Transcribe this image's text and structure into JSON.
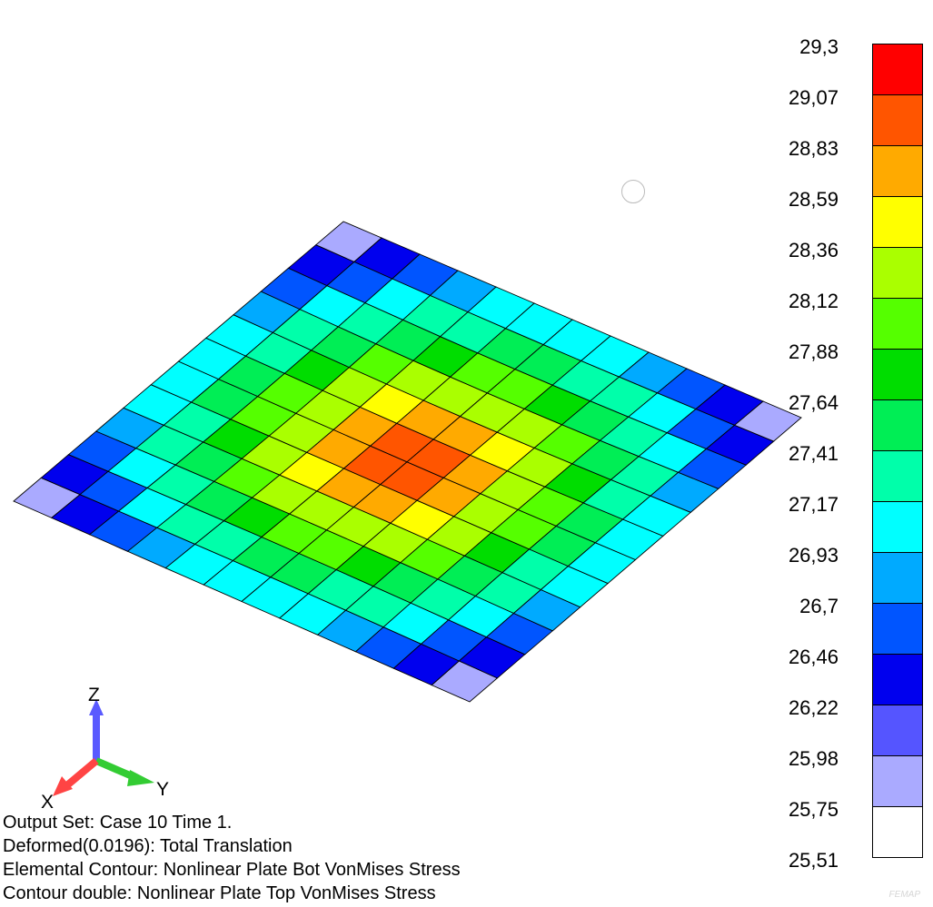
{
  "legend": {
    "colors": [
      "#ff0000",
      "#ff5500",
      "#ffaa00",
      "#ffff00",
      "#aaff00",
      "#55ff00",
      "#00dd00",
      "#00ee55",
      "#00ffaa",
      "#00ffff",
      "#00aaff",
      "#0055ff",
      "#0000ee",
      "#5555ff",
      "#aaaaff",
      "#ffffff"
    ],
    "ticks": [
      "29,3",
      "29,07",
      "28,83",
      "28,59",
      "28,36",
      "28,12",
      "27,88",
      "27,64",
      "27,41",
      "27,17",
      "26,93",
      "26,7",
      "26,46",
      "26,22",
      "25,98",
      "25,75",
      "25,51"
    ]
  },
  "info": {
    "line1": "Output Set: Case 10 Time 1.",
    "line2": "Deformed(0.0196): Total Translation",
    "line3": "Elemental Contour: Nonlinear Plate Bot VonMises Stress",
    "line4": "Contour double: Nonlinear Plate Top VonMises Stress"
  },
  "triad": {
    "z": "Z",
    "x": "X",
    "y": "Y",
    "z_color": "#5a5aff",
    "x_color": "#ff4444",
    "y_color": "#33cc33"
  },
  "watermark": "FEMAP",
  "plate": {
    "divisions": 12,
    "value_center": 29.0,
    "value_corner": 25.6
  }
}
